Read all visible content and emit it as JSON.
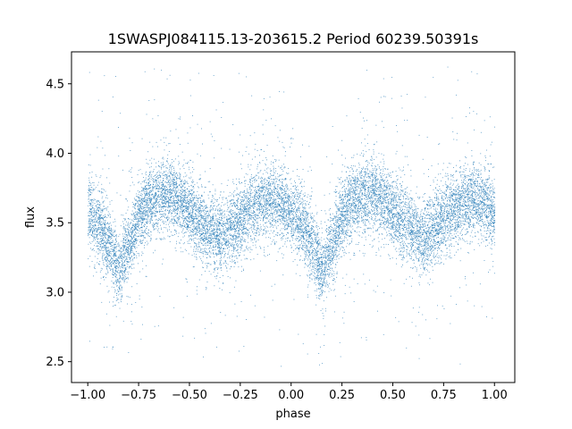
{
  "chart_data": {
    "type": "scatter",
    "title": "1SWASPJ084115.13-203615.2 Period 60239.50391s",
    "xlabel": "phase",
    "ylabel": "flux",
    "xlim": [
      -1.08,
      1.1
    ],
    "ylim": [
      2.35,
      4.73
    ],
    "x_ticks": [
      -1.0,
      -0.75,
      -0.5,
      -0.25,
      0.0,
      0.25,
      0.5,
      0.75,
      1.0
    ],
    "x_tick_labels": [
      "−1.00",
      "−0.75",
      "−0.50",
      "−0.25",
      "0.00",
      "0.25",
      "0.50",
      "0.75",
      "1.00"
    ],
    "y_ticks": [
      2.5,
      3.0,
      3.5,
      4.0,
      4.5
    ],
    "y_tick_labels": [
      "2.5",
      "3.0",
      "3.5",
      "4.0",
      "4.5"
    ],
    "point_color": "#1f77b4",
    "grid": false,
    "trend_phase": [
      0.0,
      0.05,
      0.1,
      0.15,
      0.2,
      0.25,
      0.3,
      0.35,
      0.4,
      0.45,
      0.5,
      0.55,
      0.6,
      0.65,
      0.7,
      0.75,
      0.8,
      0.85,
      0.9,
      0.95,
      1.0
    ],
    "trend_flux": [
      3.57,
      3.5,
      3.35,
      3.18,
      3.32,
      3.55,
      3.65,
      3.7,
      3.72,
      3.66,
      3.58,
      3.5,
      3.44,
      3.4,
      3.46,
      3.54,
      3.6,
      3.65,
      3.67,
      3.63,
      3.57
    ],
    "point_count": 14000,
    "scatter_sd": 0.13
  }
}
